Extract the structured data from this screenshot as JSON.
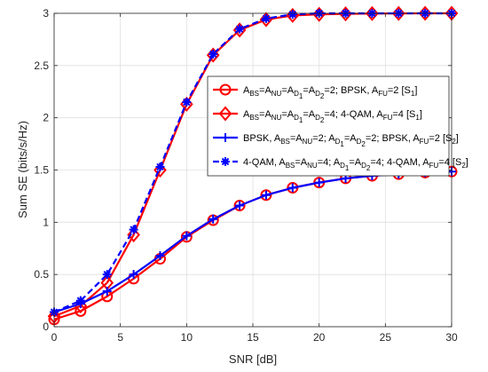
{
  "chart_data": {
    "type": "line",
    "xlabel": "SNR [dB]",
    "ylabel": "Sum SE (bits/s/Hz)",
    "xlim": [
      0,
      30
    ],
    "ylim": [
      0,
      3
    ],
    "xticks": [
      0,
      5,
      10,
      15,
      20,
      25,
      30
    ],
    "yticks": [
      0,
      0.5,
      1,
      1.5,
      2,
      2.5,
      3
    ],
    "xtick_labels": [
      "0",
      "5",
      "10",
      "15",
      "20",
      "25",
      "30"
    ],
    "ytick_labels": [
      "0",
      "0.5",
      "1",
      "1.5",
      "2",
      "2.5",
      "3"
    ],
    "grid": true,
    "legend_position": "right-center",
    "x": [
      0,
      2,
      4,
      6,
      8,
      10,
      12,
      14,
      16,
      18,
      20,
      22,
      24,
      26,
      28,
      30
    ],
    "series": [
      {
        "id": "s1",
        "label_parts": [
          [
            "A",
            ""
          ],
          [
            "BS",
            "sub"
          ],
          [
            "=A",
            ""
          ],
          [
            "NU",
            "sub"
          ],
          [
            "=A",
            ""
          ],
          [
            "D",
            "sub"
          ],
          [
            "1",
            "subsub"
          ],
          [
            "=A",
            ""
          ],
          [
            "D",
            "sub"
          ],
          [
            "2",
            "subsub"
          ],
          [
            "=2; BPSK, A",
            ""
          ],
          [
            "FU",
            "sub"
          ],
          [
            "=2 [S",
            ""
          ],
          [
            "1",
            "sub"
          ],
          [
            "]",
            ""
          ]
        ],
        "color": "#ff0000",
        "line_style": "solid",
        "marker": "circle",
        "values": [
          0.07,
          0.15,
          0.29,
          0.46,
          0.65,
          0.86,
          1.02,
          1.16,
          1.26,
          1.33,
          1.38,
          1.42,
          1.445,
          1.46,
          1.475,
          1.485
        ]
      },
      {
        "id": "s2",
        "label_parts": [
          [
            "A",
            ""
          ],
          [
            "BS",
            "sub"
          ],
          [
            "=A",
            ""
          ],
          [
            "NU",
            "sub"
          ],
          [
            "=A",
            ""
          ],
          [
            "D",
            "sub"
          ],
          [
            "1",
            "subsub"
          ],
          [
            "=A",
            ""
          ],
          [
            "D",
            "sub"
          ],
          [
            "2",
            "subsub"
          ],
          [
            "=4; 4-QAM, A",
            ""
          ],
          [
            "FU",
            "sub"
          ],
          [
            "=4 [S",
            ""
          ],
          [
            "1",
            "sub"
          ],
          [
            "]",
            ""
          ]
        ],
        "color": "#ff0000",
        "line_style": "solid",
        "marker": "diamond",
        "values": [
          0.1,
          0.2,
          0.42,
          0.88,
          1.5,
          2.13,
          2.6,
          2.84,
          2.94,
          2.98,
          2.99,
          2.995,
          2.998,
          2.999,
          3.0,
          3.0
        ]
      },
      {
        "id": "s3",
        "label_parts": [
          [
            "BPSK, A",
            ""
          ],
          [
            "BS",
            "sub"
          ],
          [
            "=A",
            ""
          ],
          [
            "NU",
            "sub"
          ],
          [
            "=2; A",
            ""
          ],
          [
            "D",
            "sub"
          ],
          [
            "1",
            "subsub"
          ],
          [
            "=A",
            ""
          ],
          [
            "D",
            "sub"
          ],
          [
            "2",
            "subsub"
          ],
          [
            "=2; BPSK, A",
            ""
          ],
          [
            "FU",
            "sub"
          ],
          [
            "=2 [S",
            ""
          ],
          [
            "2",
            "sub"
          ],
          [
            "]",
            ""
          ]
        ],
        "color": "#0000ff",
        "line_style": "solid",
        "marker": "plus",
        "values": [
          0.14,
          0.22,
          0.34,
          0.5,
          0.68,
          0.87,
          1.03,
          1.16,
          1.26,
          1.33,
          1.38,
          1.42,
          1.445,
          1.46,
          1.475,
          1.485
        ]
      },
      {
        "id": "s4",
        "label_parts": [
          [
            "4-QAM, A",
            ""
          ],
          [
            "BS",
            "sub"
          ],
          [
            "=A",
            ""
          ],
          [
            "NU",
            "sub"
          ],
          [
            "=4; A",
            ""
          ],
          [
            "D",
            "sub"
          ],
          [
            "1",
            "subsub"
          ],
          [
            "=A",
            ""
          ],
          [
            "D",
            "sub"
          ],
          [
            "2",
            "subsub"
          ],
          [
            "=4; 4-QAM, A",
            ""
          ],
          [
            "FU",
            "sub"
          ],
          [
            "=4 [S",
            ""
          ],
          [
            "2",
            "sub"
          ],
          [
            "]",
            ""
          ]
        ],
        "color": "#0000ff",
        "line_style": "dashed",
        "marker": "asterisk",
        "values": [
          0.14,
          0.25,
          0.5,
          0.93,
          1.53,
          2.15,
          2.61,
          2.85,
          2.95,
          2.99,
          3.0,
          3.0,
          3.0,
          3.0,
          3.0,
          3.0
        ]
      }
    ]
  }
}
